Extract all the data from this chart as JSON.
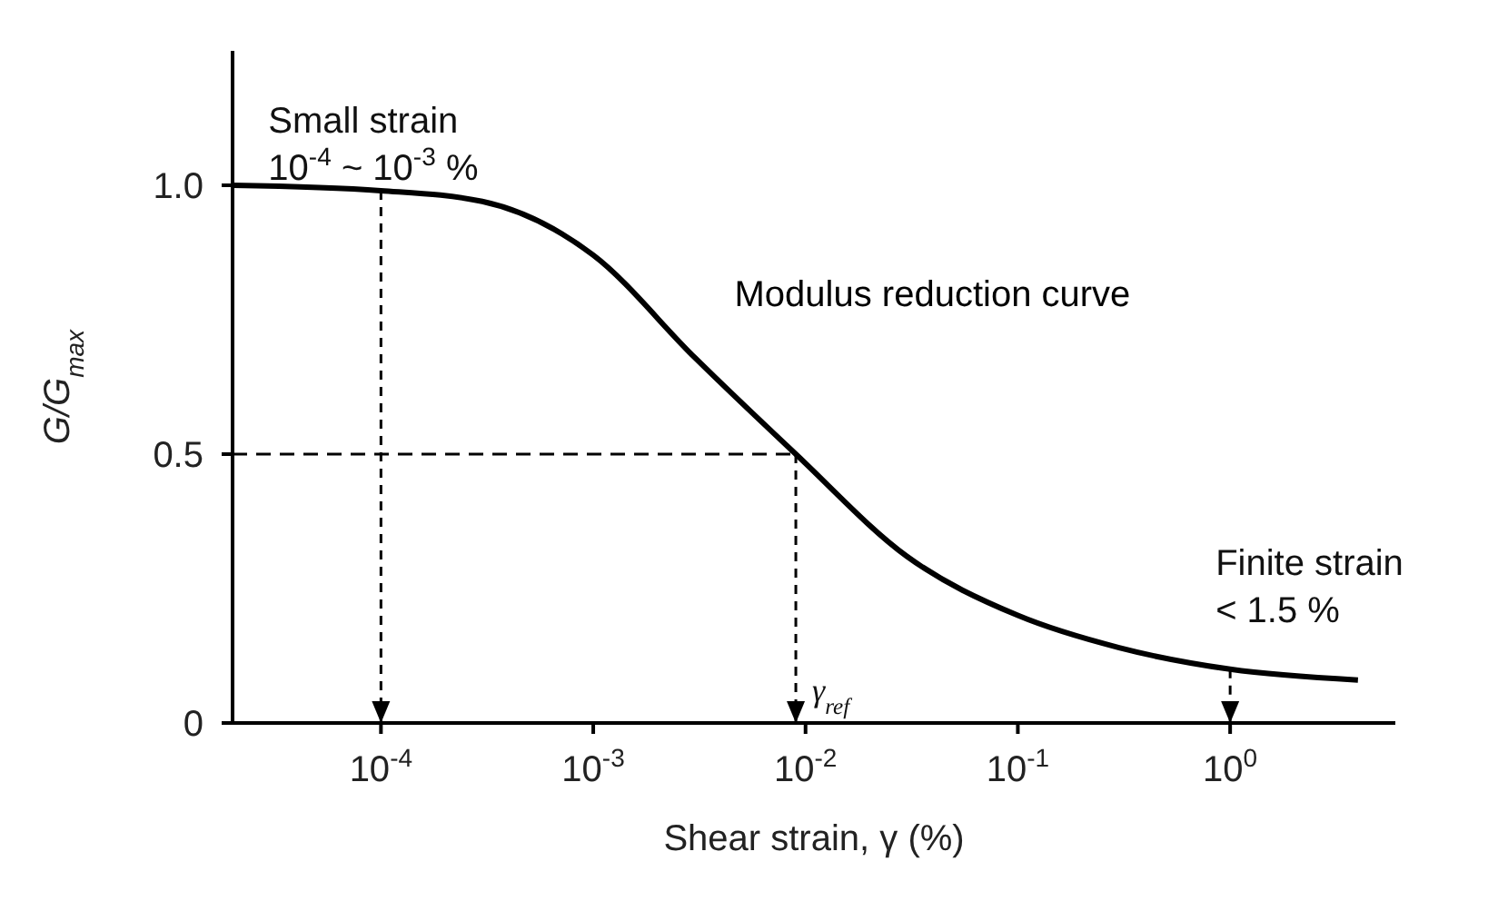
{
  "chart_data": {
    "type": "line",
    "xlabel": "Shear strain, γ (%)",
    "ylabel": "G/G$_{max}$",
    "log": "x",
    "x": [
      2e-05,
      0.0001,
      0.0003,
      0.001,
      0.003,
      0.009,
      0.03,
      0.1,
      0.3,
      1,
      4
    ],
    "series": [
      {
        "name": "Modulus reduction curve",
        "color": "#000000",
        "values": [
          1.0,
          0.99,
          0.97,
          0.87,
          0.68,
          0.5,
          0.31,
          0.2,
          0.14,
          0.1,
          0.08
        ]
      },
      {
        "type": "line",
        "line_style": "dashed",
        "color": "#000000",
        "x": [
          2e-05,
          0.009
        ],
        "values": [
          0.5,
          0.5
        ]
      }
    ],
    "xlim": [
      2e-05,
      6
    ],
    "ylim": [
      0,
      1.25
    ],
    "xticks": [
      {
        "value": 0.0001,
        "label": "10$^{-4}$"
      },
      {
        "value": 0.001,
        "label": "10$^{-3}$"
      },
      {
        "value": 0.01,
        "label": "10$^{-2}$"
      },
      {
        "value": 0.1,
        "label": "10$^{-1}$"
      },
      {
        "value": 1,
        "label": "10$^{0}$"
      }
    ],
    "yticks": [
      0,
      0.5,
      {
        "value": 1,
        "label": "1.0"
      }
    ],
    "grid": false,
    "legend": false,
    "marker": "none",
    "line_style": "solid",
    "annotations": [
      {
        "text": "Small strain\n10$^{-4}$ ~ 10$^{-3}$ %",
        "x": 0.0001,
        "y": 0.99
      },
      {
        "text": "γ$_{ref}$",
        "x": 0.009,
        "y": 0.5
      },
      {
        "text": "Finite strain\n< 1.5 %",
        "x": 1,
        "y": 0.1
      }
    ]
  }
}
